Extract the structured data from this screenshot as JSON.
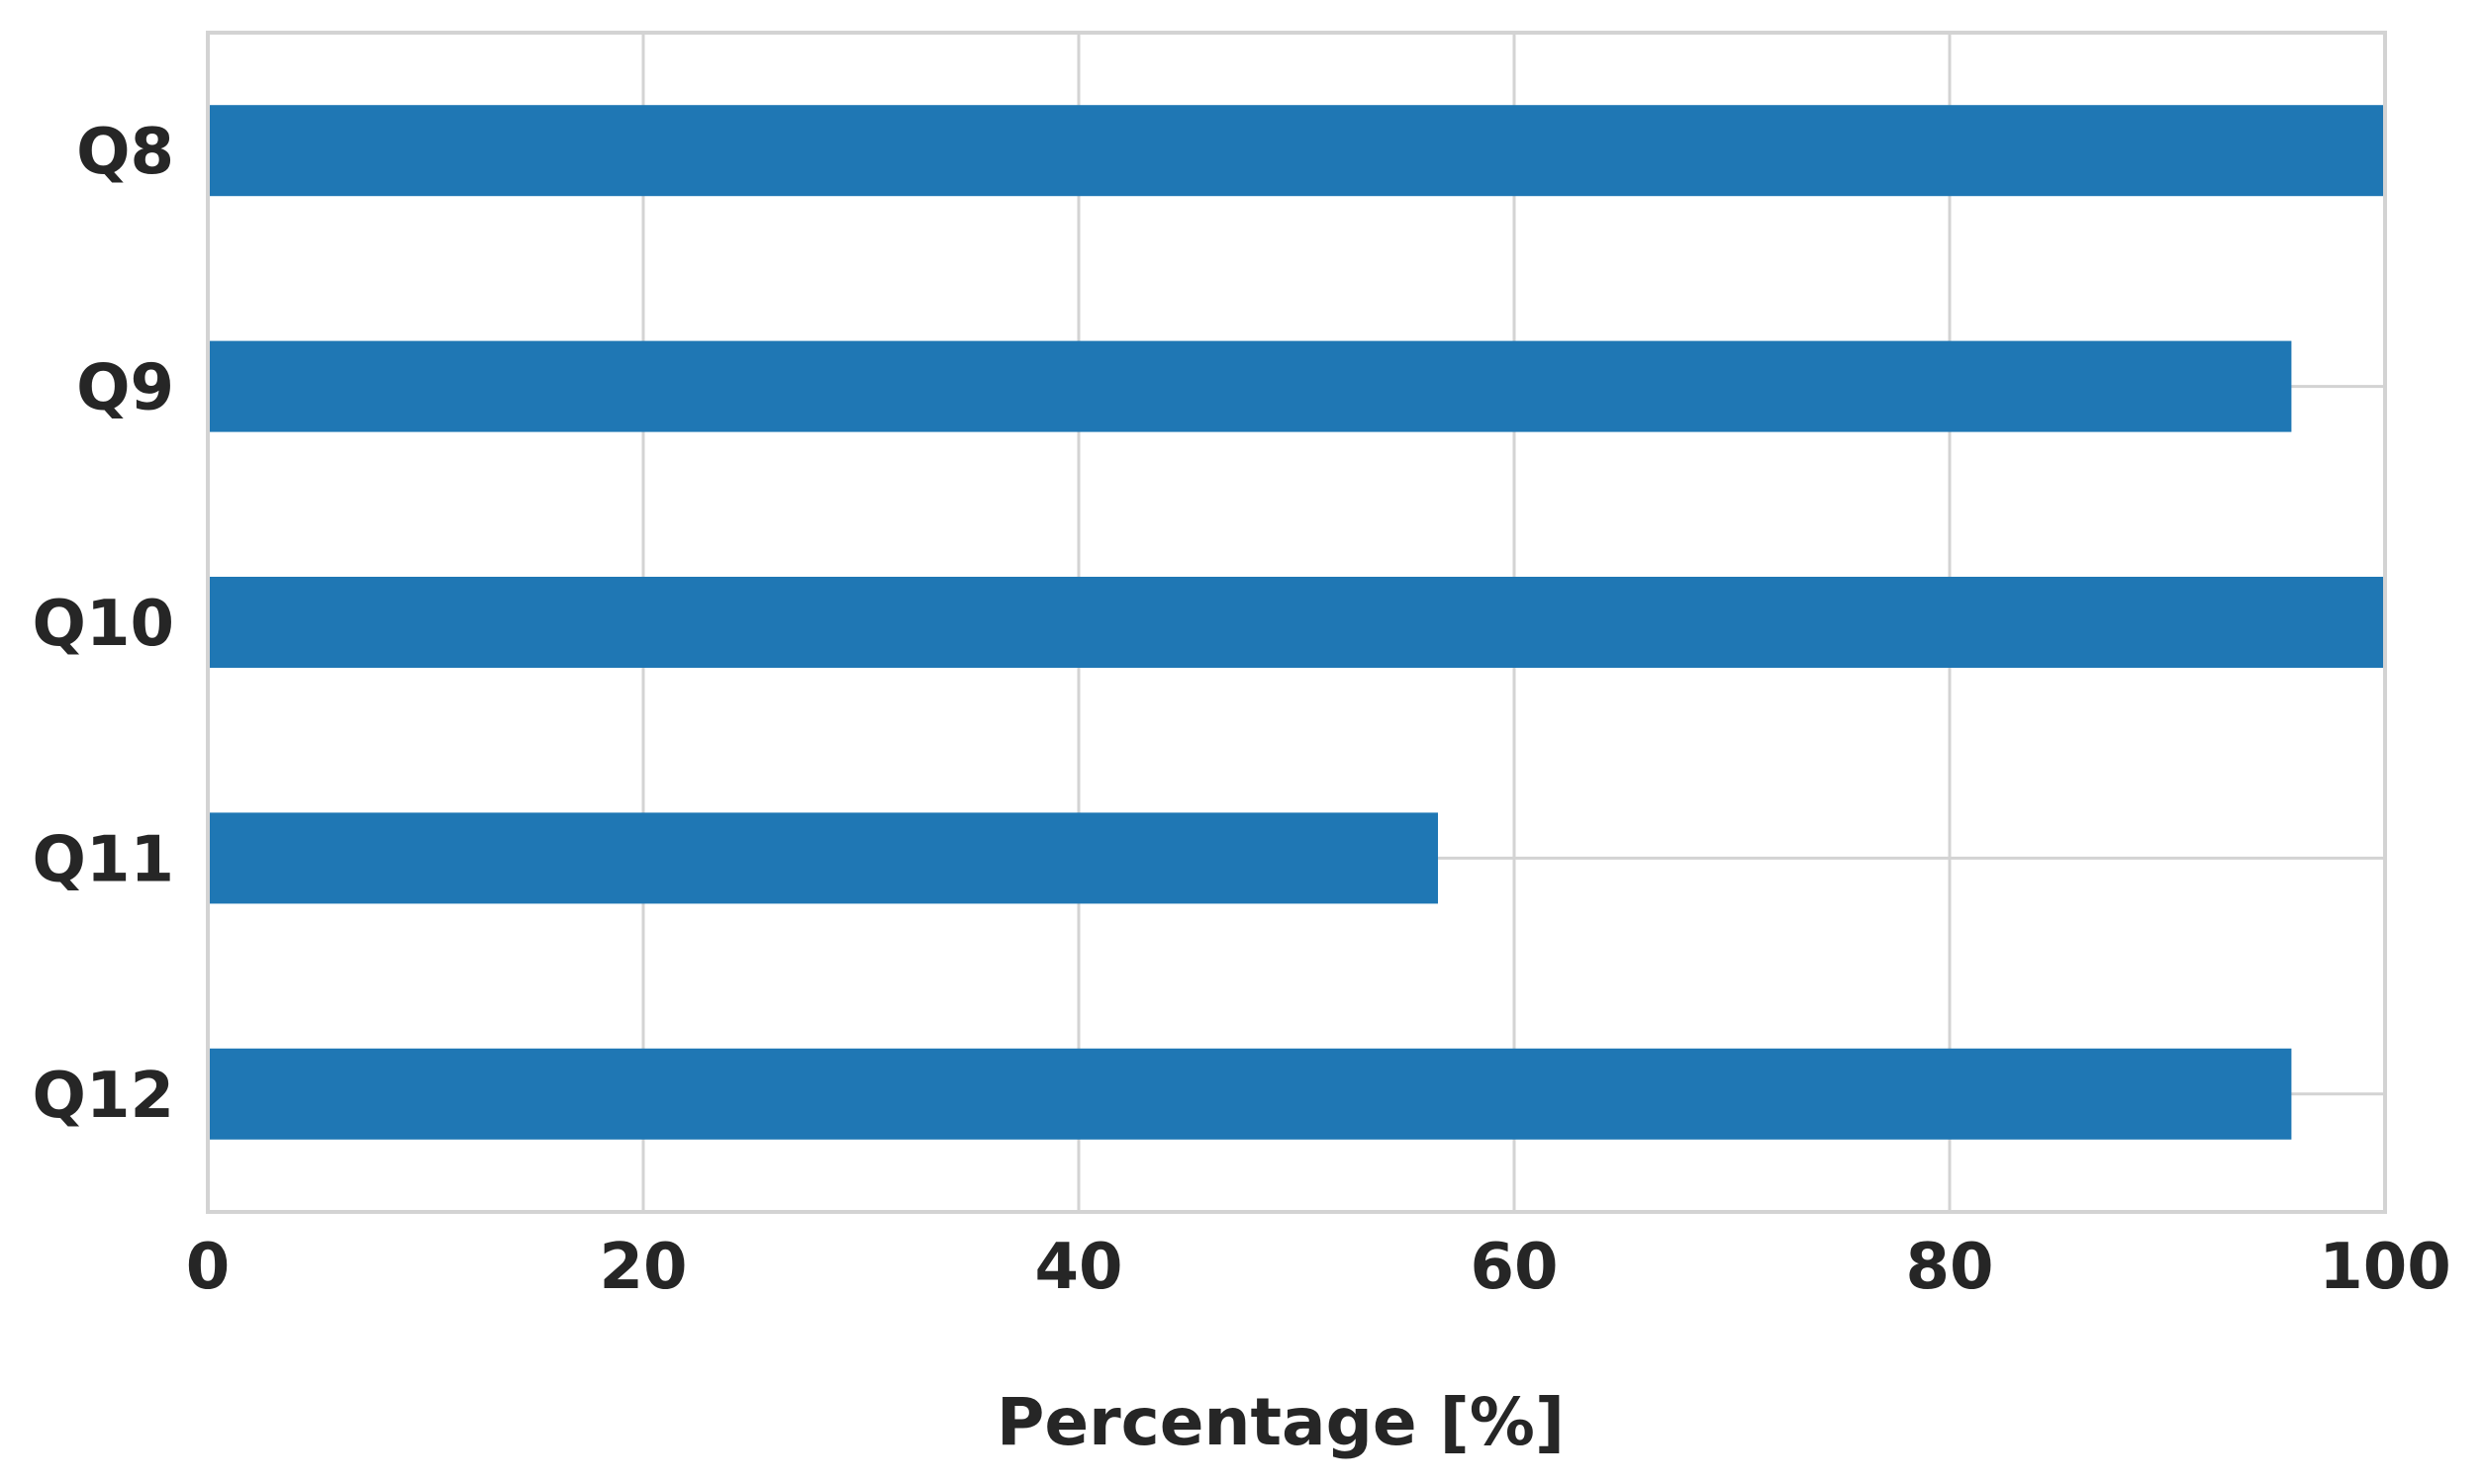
{
  "chart_data": {
    "type": "bar",
    "orientation": "horizontal",
    "categories": [
      "Q8",
      "Q9",
      "Q10",
      "Q11",
      "Q12"
    ],
    "values": [
      100,
      95.7,
      100,
      56.5,
      95.7
    ],
    "title": "",
    "xlabel": "Percentage [%]",
    "ylabel": "",
    "xlim": [
      0,
      100
    ],
    "xticks": [
      "0",
      "20",
      "40",
      "60",
      "80",
      "100"
    ],
    "grid": true,
    "bar_color": "#1f77b4",
    "grid_color": "#d3d3d3",
    "text_color": "#262626"
  }
}
